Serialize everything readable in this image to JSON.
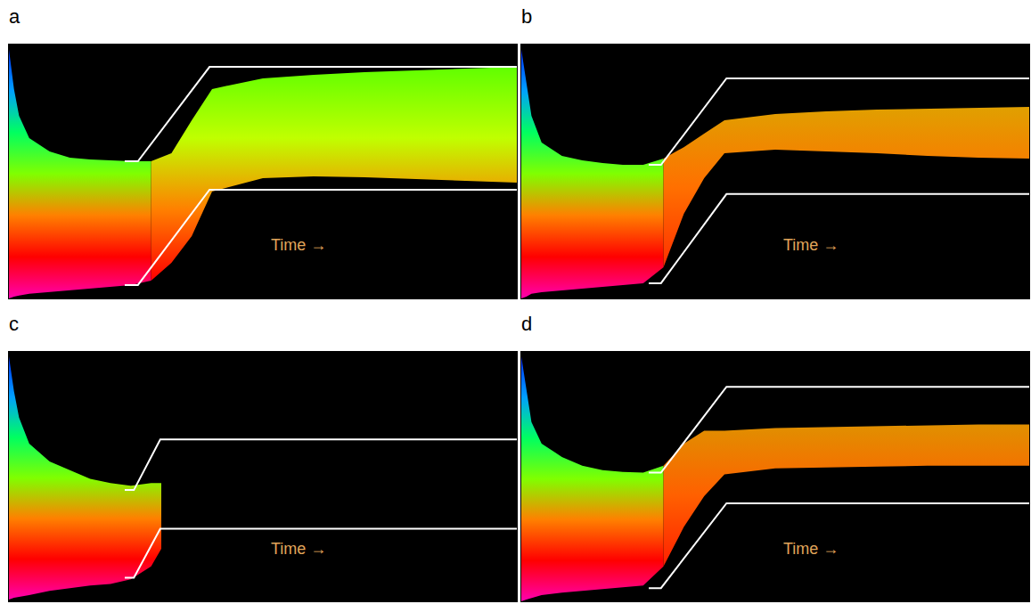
{
  "chart_data": [
    {
      "type": "area",
      "title": "a",
      "annotations": [
        "Time →"
      ],
      "xlim": [
        0,
        100
      ],
      "ylim": [
        0,
        100
      ],
      "tick_labels": false,
      "grid": false,
      "series": [
        {
          "type": "band",
          "x": [
            0,
            1,
            2,
            4,
            8,
            12,
            16,
            20,
            24,
            28
          ],
          "upper": [
            98.2,
            82.5,
            71.9,
            63.2,
            57.9,
            55.4,
            54.7,
            54.4,
            54.0,
            54.0
          ],
          "lower": [
            0,
            0.7,
            1.1,
            1.8,
            2.5,
            3.2,
            3.9,
            4.6,
            5.3,
            7.0
          ],
          "colors": [
            "#ff00b0",
            "#ff0000",
            "#ff8000",
            "#80ff00",
            "#00ff60",
            "#00a0ff",
            "#0030ff"
          ]
        },
        {
          "type": "band",
          "x": [
            28,
            32,
            36,
            40,
            50,
            60,
            70,
            80,
            90,
            100
          ],
          "upper": [
            54.0,
            57.2,
            70.2,
            82.5,
            86.7,
            88.1,
            89.1,
            89.8,
            90.5,
            91.2
          ],
          "lower": [
            7.0,
            14.0,
            24.6,
            42.1,
            47.4,
            48.1,
            47.7,
            47.0,
            46.3,
            45.6
          ],
          "colors": [
            "#ff0000",
            "#ff8000",
            "#c0ff00",
            "#60ff00"
          ]
        },
        {
          "type": "line",
          "x": [
            22.8,
            25.4,
            39.5,
            100
          ],
          "values": [
            54.0,
            54.0,
            91.2,
            91.2
          ],
          "color": "#ffffff"
        },
        {
          "type": "line",
          "x": [
            22.8,
            25.4,
            39.5,
            100
          ],
          "values": [
            5.3,
            5.3,
            42.8,
            42.8
          ],
          "color": "#ffffff"
        }
      ]
    },
    {
      "type": "area",
      "title": "b",
      "annotations": [
        "Time →"
      ],
      "xlim": [
        0,
        100
      ],
      "ylim": [
        0,
        100
      ],
      "tick_labels": false,
      "grid": false,
      "series": [
        {
          "type": "band",
          "x": [
            0,
            1,
            2,
            4,
            8,
            12,
            16,
            20,
            24,
            28
          ],
          "upper": [
            98.2,
            84.2,
            71.9,
            61.4,
            56.1,
            54.4,
            53.3,
            52.6,
            52.6,
            55.1
          ],
          "lower": [
            0,
            0.7,
            1.8,
            2.5,
            3.2,
            3.9,
            4.6,
            5.3,
            6.0,
            12.3
          ],
          "colors": [
            "#ff00b0",
            "#ff0000",
            "#ff8000",
            "#80ff00",
            "#00ff60",
            "#00a0ff",
            "#0030ff"
          ]
        },
        {
          "type": "band",
          "x": [
            28,
            32,
            36,
            40,
            50,
            60,
            70,
            80,
            90,
            100
          ],
          "upper": [
            55.1,
            59.6,
            64.9,
            70.2,
            72.6,
            73.7,
            74.4,
            74.7,
            75.1,
            75.4
          ],
          "lower": [
            12.3,
            33.3,
            47.4,
            57.2,
            58.6,
            57.9,
            57.2,
            56.1,
            55.4,
            55.1
          ],
          "colors": [
            "#ff3000",
            "#ff7000",
            "#e0a000"
          ]
        },
        {
          "type": "line",
          "x": [
            25.1,
            27.5,
            40.4,
            100
          ],
          "values": [
            52.6,
            52.6,
            86.7,
            86.7
          ],
          "color": "#ffffff"
        },
        {
          "type": "line",
          "x": [
            25.1,
            27.5,
            40.4,
            100
          ],
          "values": [
            6.0,
            6.0,
            41.1,
            41.1
          ],
          "color": "#ffffff"
        }
      ]
    },
    {
      "type": "area",
      "title": "c",
      "annotations": [
        "Time →"
      ],
      "xlim": [
        0,
        100
      ],
      "ylim": [
        0,
        100
      ],
      "tick_labels": false,
      "grid": false,
      "series": [
        {
          "type": "band",
          "x": [
            0,
            1,
            2,
            4,
            8,
            12,
            16,
            20,
            24,
            28,
            30
          ],
          "upper": [
            98.2,
            84.2,
            73.7,
            63.2,
            56.1,
            52.6,
            49.1,
            47.4,
            46.3,
            47.4,
            47.4
          ],
          "lower": [
            0.7,
            1.4,
            1.8,
            2.5,
            4.2,
            5.3,
            6.3,
            7.0,
            8.8,
            14.0,
            21.1
          ],
          "colors": [
            "#ff00b0",
            "#ff0000",
            "#ff8000",
            "#80ff00",
            "#00ff60",
            "#00a0ff",
            "#0030ff"
          ]
        },
        {
          "type": "line",
          "x": [
            22.8,
            24.6,
            29.8,
            100
          ],
          "values": [
            44.6,
            44.6,
            64.9,
            64.9
          ],
          "color": "#ffffff"
        },
        {
          "type": "line",
          "x": [
            22.8,
            24.6,
            29.8,
            100
          ],
          "values": [
            9.5,
            9.5,
            29.1,
            29.1
          ],
          "color": "#ffffff"
        }
      ]
    },
    {
      "type": "area",
      "title": "d",
      "annotations": [
        "Time →"
      ],
      "xlim": [
        0,
        100
      ],
      "ylim": [
        0,
        100
      ],
      "tick_labels": false,
      "grid": false,
      "series": [
        {
          "type": "band",
          "x": [
            0,
            1,
            2,
            4,
            8,
            12,
            16,
            20,
            24,
            28
          ],
          "upper": [
            98.2,
            84.2,
            71.9,
            63.2,
            57.9,
            54.4,
            52.6,
            51.9,
            51.6,
            54.4
          ],
          "lower": [
            0,
            0.7,
            1.4,
            2.5,
            3.5,
            4.2,
            4.9,
            5.6,
            6.3,
            14.0
          ],
          "colors": [
            "#ff00b0",
            "#ff0000",
            "#ff8000",
            "#80ff00",
            "#00ff60",
            "#00a0ff",
            "#0030ff"
          ]
        },
        {
          "type": "band",
          "x": [
            28,
            32,
            36,
            40,
            50,
            60,
            70,
            80,
            90,
            100
          ],
          "upper": [
            54.4,
            63.2,
            68.4,
            68.4,
            69.5,
            69.8,
            70.2,
            70.5,
            70.9,
            70.9
          ],
          "lower": [
            14.0,
            29.8,
            42.1,
            50.9,
            53.3,
            53.7,
            54.0,
            54.4,
            54.4,
            54.4
          ],
          "colors": [
            "#ff2000",
            "#ff6000",
            "#e09000"
          ]
        },
        {
          "type": "line",
          "x": [
            25.1,
            27.5,
            40.4,
            100
          ],
          "values": [
            51.6,
            51.6,
            86.0,
            86.0
          ],
          "color": "#ffffff"
        },
        {
          "type": "line",
          "x": [
            25.1,
            27.5,
            40.4,
            100
          ],
          "values": [
            5.3,
            5.3,
            39.3,
            39.3
          ],
          "color": "#ffffff"
        }
      ]
    }
  ]
}
